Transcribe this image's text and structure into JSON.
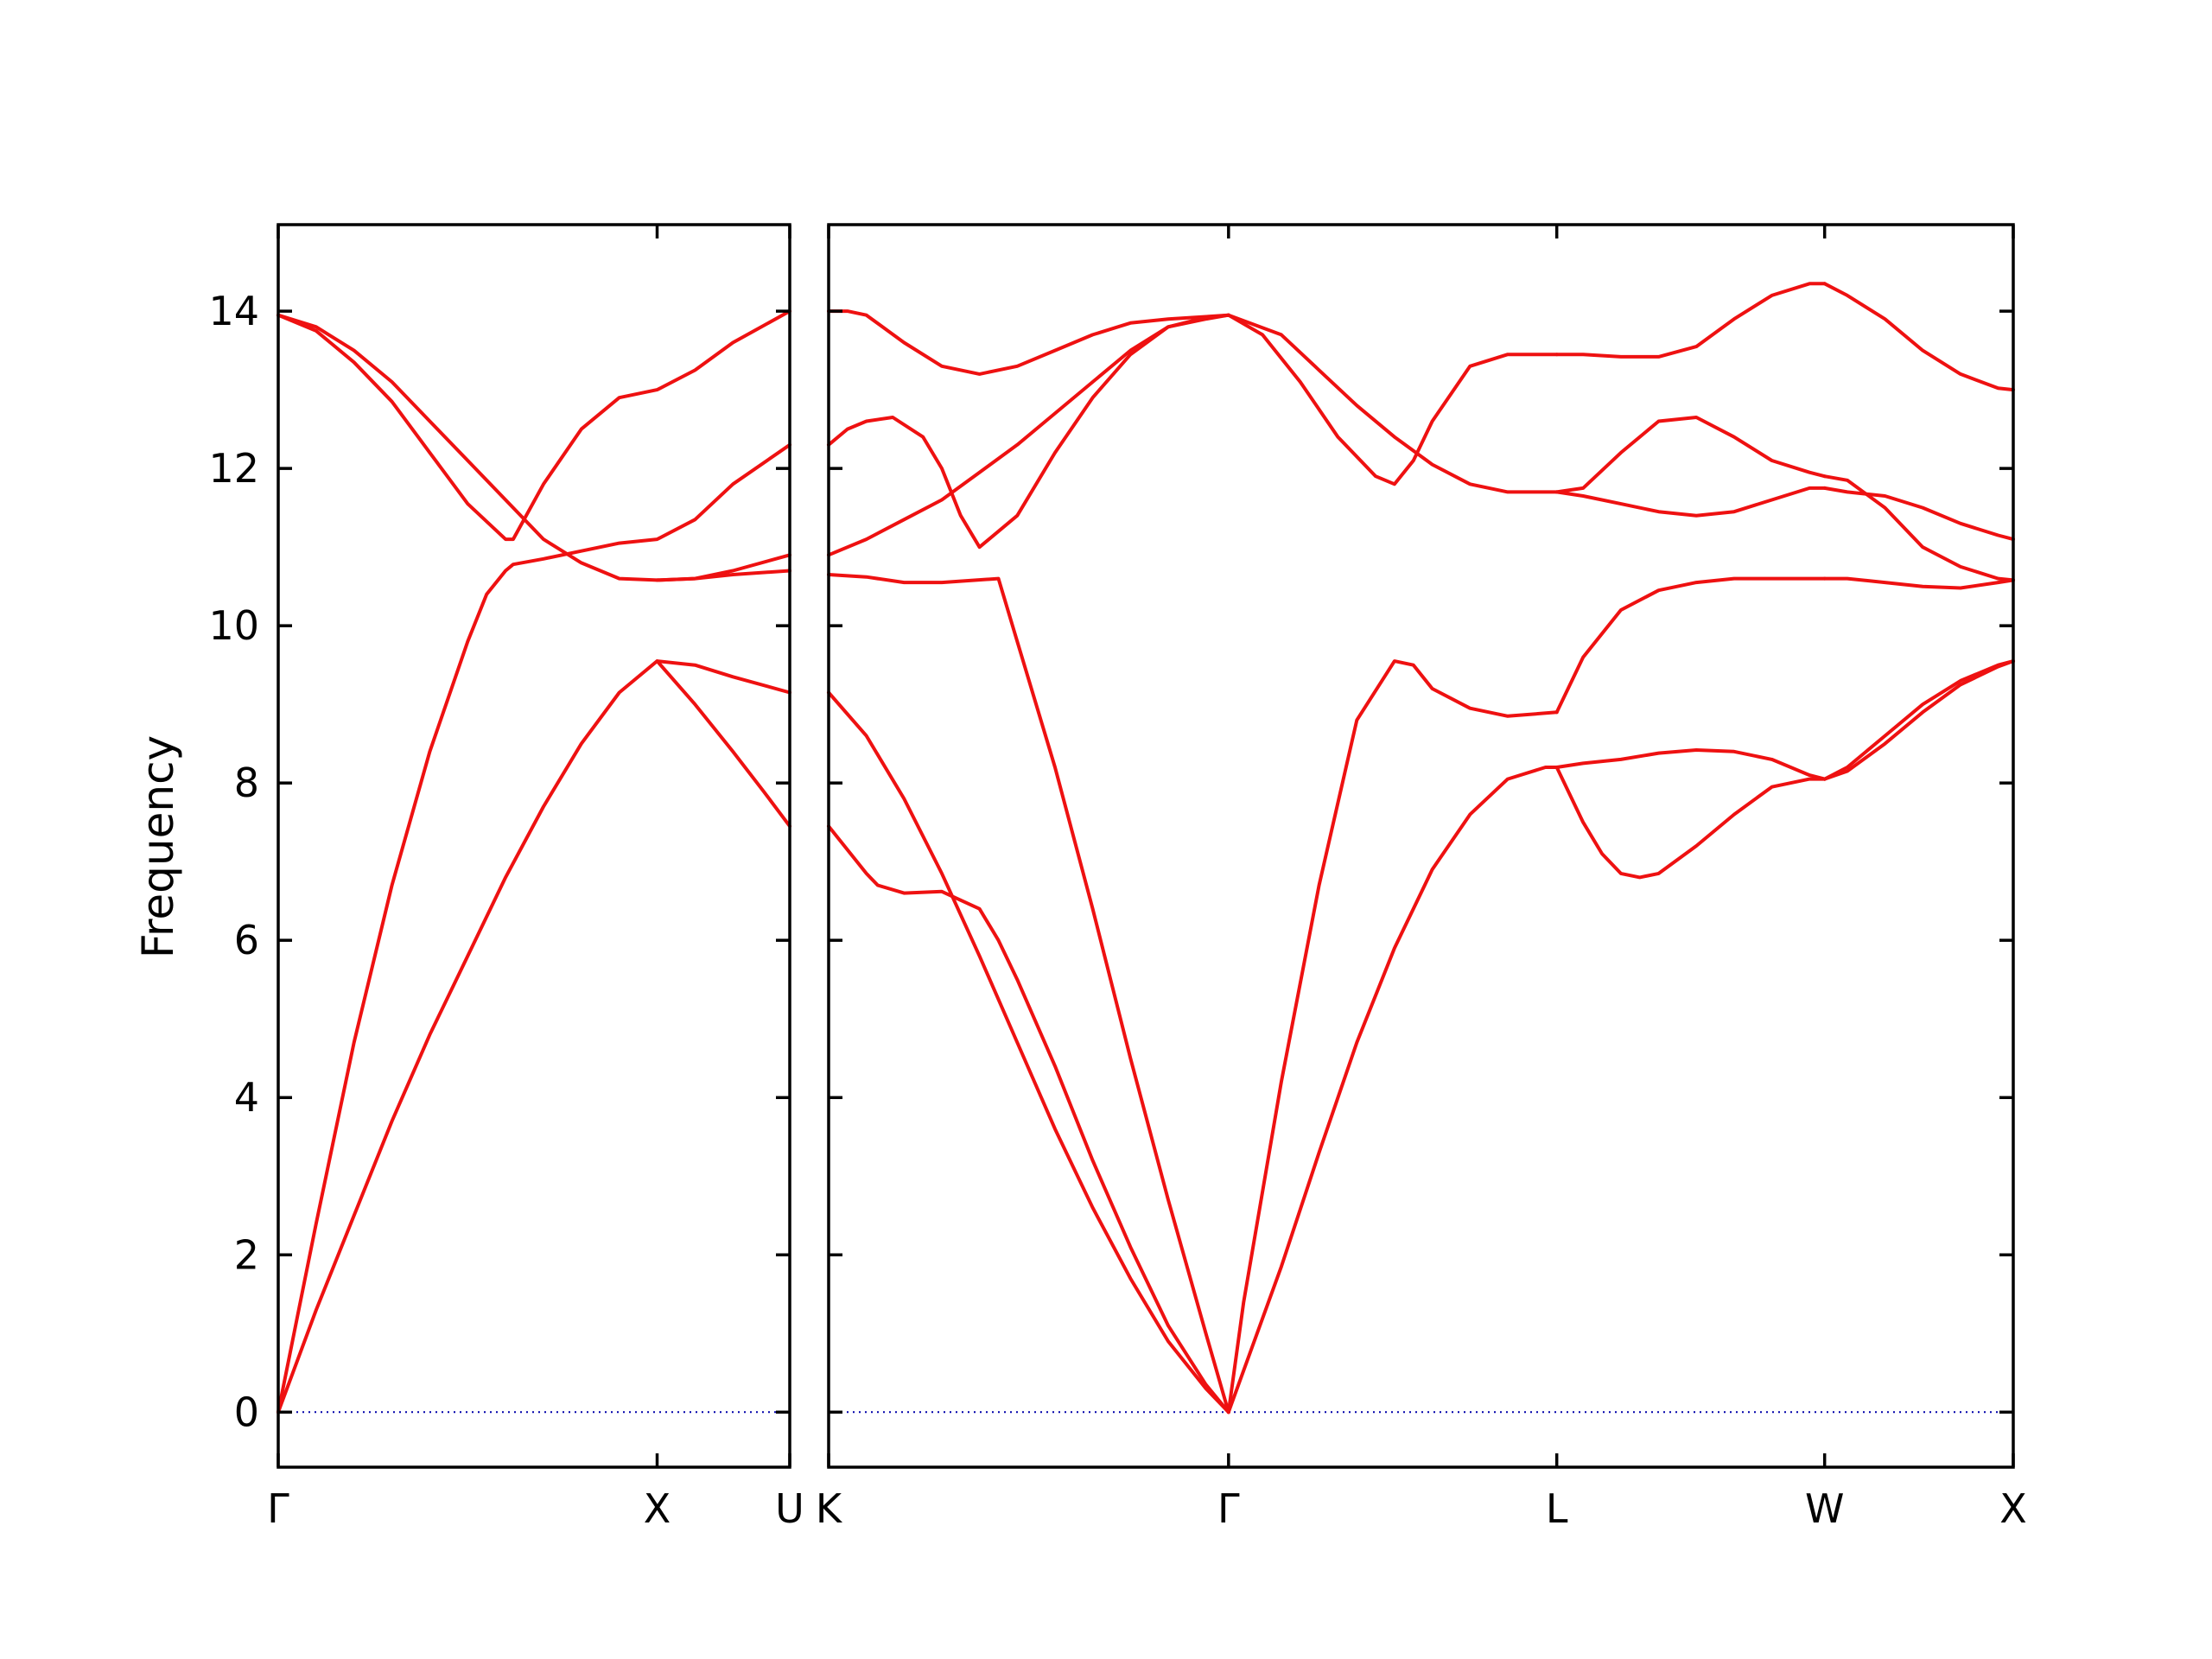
{
  "chart_data": {
    "type": "line",
    "title": "",
    "ylabel": "Frequency",
    "ylim": [
      -0.7,
      15.1
    ],
    "yticks": [
      0,
      2,
      4,
      6,
      8,
      10,
      12,
      14
    ],
    "line_color": "#ee1111",
    "zero_line_color": "#0000aa",
    "grid": false,
    "panels": [
      {
        "id": "left",
        "xlim": [
          0,
          1.35
        ],
        "xticks": [
          {
            "label": "Γ",
            "x": 0
          },
          {
            "label": "X",
            "x": 1.0
          },
          {
            "label": "U",
            "x": 1.35
          }
        ],
        "branches": [
          {
            "x": [
              0,
              0.05,
              0.1,
              0.2,
              0.3,
              0.4,
              0.5,
              0.55,
              0.6,
              0.62,
              0.7,
              0.8,
              0.9,
              1.0,
              1.1,
              1.2,
              1.35
            ],
            "y": [
              0,
              1.2,
              2.4,
              4.7,
              6.7,
              8.4,
              9.8,
              10.4,
              10.7,
              10.78,
              10.85,
              10.95,
              11.05,
              11.1,
              11.35,
              11.8,
              12.3
            ]
          },
          {
            "x": [
              0,
              0.1,
              0.2,
              0.3,
              0.4,
              0.5,
              0.6,
              0.7,
              0.8,
              0.9,
              1.0,
              1.1,
              1.2,
              1.35
            ],
            "y": [
              0,
              1.3,
              2.5,
              3.7,
              4.8,
              5.8,
              6.8,
              7.7,
              8.5,
              9.15,
              9.55,
              9.5,
              9.35,
              9.15
            ]
          },
          {
            "x": [
              0,
              0.1,
              0.2,
              0.3,
              0.4,
              0.5,
              0.6,
              0.62,
              0.7,
              0.8,
              0.9,
              1.0,
              1.1,
              1.2,
              1.35
            ],
            "y": [
              13.95,
              13.75,
              13.35,
              12.85,
              12.2,
              11.55,
              11.1,
              11.1,
              11.8,
              12.5,
              12.9,
              13.0,
              13.25,
              13.6,
              14.0
            ]
          },
          {
            "x": [
              0,
              0.1,
              0.2,
              0.3,
              0.4,
              0.5,
              0.6,
              0.7,
              0.8,
              0.9,
              1.0,
              1.1,
              1.2,
              1.35
            ],
            "y": [
              13.95,
              13.8,
              13.5,
              13.1,
              12.6,
              12.1,
              11.6,
              11.1,
              10.8,
              10.6,
              10.58,
              10.6,
              10.65,
              10.7
            ]
          },
          {
            "x": [
              1.0,
              1.1,
              1.2,
              1.35
            ],
            "y": [
              10.58,
              10.6,
              10.7,
              10.9
            ]
          },
          {
            "x": [
              1.0,
              1.1,
              1.2,
              1.28,
              1.35
            ],
            "y": [
              9.55,
              9.0,
              8.4,
              7.9,
              7.45
            ]
          }
        ]
      },
      {
        "id": "right",
        "xlim": [
          0,
          3.14
        ],
        "xticks": [
          {
            "label": "K",
            "x": 0
          },
          {
            "label": "Γ",
            "x": 1.06
          },
          {
            "label": "L",
            "x": 1.93
          },
          {
            "label": "W",
            "x": 2.64
          },
          {
            "label": "X",
            "x": 3.14
          }
        ],
        "branches": [
          {
            "x": [
              0,
              0.1,
              0.2,
              0.3,
              0.4,
              0.5,
              0.6,
              0.7,
              0.8,
              0.9,
              1.0,
              1.06
            ],
            "y": [
              9.15,
              8.6,
              7.8,
              6.85,
              5.8,
              4.7,
              3.6,
              2.6,
              1.7,
              0.9,
              0.3,
              0
            ]
          },
          {
            "x": [
              0,
              0.1,
              0.13,
              0.2,
              0.3,
              0.4,
              0.45,
              0.5,
              0.6,
              0.7,
              0.8,
              0.9,
              1.0,
              1.06
            ],
            "y": [
              7.45,
              6.85,
              6.7,
              6.6,
              6.62,
              6.4,
              6.0,
              5.5,
              4.4,
              3.2,
              2.1,
              1.1,
              0.35,
              0
            ]
          },
          {
            "x": [
              0,
              0.1,
              0.2,
              0.3,
              0.45,
              0.5,
              0.6,
              0.7,
              0.8,
              0.9,
              1.0,
              1.06
            ],
            "y": [
              10.65,
              10.62,
              10.55,
              10.55,
              10.6,
              9.8,
              8.2,
              6.4,
              4.5,
              2.7,
              1.0,
              0
            ]
          },
          {
            "x": [
              0,
              0.05,
              0.1,
              0.17,
              0.25,
              0.3,
              0.35,
              0.4,
              0.5,
              0.6,
              0.7,
              0.8,
              0.9,
              1.0,
              1.06
            ],
            "y": [
              12.3,
              12.5,
              12.6,
              12.65,
              12.4,
              12.0,
              11.4,
              11.0,
              11.4,
              12.2,
              12.9,
              13.45,
              13.8,
              13.9,
              13.95
            ]
          },
          {
            "x": [
              0,
              0.1,
              0.2,
              0.3,
              0.4,
              0.5,
              0.6,
              0.7,
              0.8,
              0.9,
              1.0,
              1.06
            ],
            "y": [
              10.9,
              11.1,
              11.35,
              11.6,
              11.95,
              12.3,
              12.7,
              13.1,
              13.5,
              13.8,
              13.92,
              13.95
            ]
          },
          {
            "x": [
              0,
              0.05,
              0.1,
              0.2,
              0.3,
              0.4,
              0.5,
              0.6,
              0.7,
              0.8,
              0.9,
              1.0,
              1.06
            ],
            "y": [
              14.0,
              14.0,
              13.95,
              13.6,
              13.3,
              13.2,
              13.3,
              13.5,
              13.7,
              13.85,
              13.9,
              13.93,
              13.95
            ]
          },
          {
            "x": [
              1.06,
              1.1,
              1.2,
              1.3,
              1.4,
              1.5,
              1.55,
              1.6,
              1.7,
              1.8,
              1.93
            ],
            "y": [
              0,
              1.4,
              4.2,
              6.7,
              8.8,
              9.55,
              9.5,
              9.2,
              8.95,
              8.85,
              8.9
            ]
          },
          {
            "x": [
              1.06,
              1.2,
              1.3,
              1.4,
              1.5,
              1.6,
              1.7,
              1.8,
              1.9,
              1.93
            ],
            "y": [
              0,
              1.85,
              3.3,
              4.7,
              5.9,
              6.9,
              7.6,
              8.05,
              8.2,
              8.2
            ]
          },
          {
            "x": [
              1.06,
              1.15,
              1.25,
              1.35,
              1.45,
              1.5,
              1.55,
              1.6,
              1.7,
              1.8,
              1.93
            ],
            "y": [
              13.95,
              13.7,
              13.1,
              12.4,
              11.9,
              11.8,
              12.1,
              12.6,
              13.3,
              13.45,
              13.45
            ]
          },
          {
            "x": [
              1.06,
              1.2,
              1.3,
              1.4,
              1.5,
              1.6,
              1.7,
              1.8,
              1.93
            ],
            "y": [
              13.95,
              13.7,
              13.25,
              12.8,
              12.4,
              12.05,
              11.8,
              11.7,
              11.7
            ]
          },
          {
            "x": [
              1.93,
              2.0,
              2.1,
              2.2,
              2.3,
              2.4,
              2.5,
              2.6,
              2.64
            ],
            "y": [
              8.9,
              9.6,
              10.2,
              10.45,
              10.55,
              10.6,
              10.6,
              10.6,
              10.6
            ]
          },
          {
            "x": [
              1.93,
              2.0,
              2.1,
              2.2,
              2.3,
              2.4,
              2.5,
              2.6,
              2.64
            ],
            "y": [
              8.2,
              8.25,
              8.3,
              8.38,
              8.42,
              8.4,
              8.3,
              8.1,
              8.05
            ]
          },
          {
            "x": [
              1.93,
              2.0,
              2.05,
              2.1,
              2.15,
              2.2,
              2.3,
              2.4,
              2.5,
              2.6,
              2.64
            ],
            "y": [
              8.2,
              7.5,
              7.1,
              6.85,
              6.8,
              6.85,
              7.2,
              7.6,
              7.95,
              8.05,
              8.05
            ]
          },
          {
            "x": [
              1.93,
              2.0,
              2.1,
              2.2,
              2.3,
              2.4,
              2.5,
              2.6,
              2.64
            ],
            "y": [
              13.45,
              13.45,
              13.42,
              13.42,
              13.55,
              13.9,
              14.2,
              14.35,
              14.35
            ]
          },
          {
            "x": [
              1.93,
              2.0,
              2.1,
              2.2,
              2.3,
              2.4,
              2.5,
              2.6,
              2.64
            ],
            "y": [
              11.7,
              11.75,
              12.2,
              12.6,
              12.65,
              12.4,
              12.1,
              11.95,
              11.9
            ]
          },
          {
            "x": [
              1.93,
              2.0,
              2.1,
              2.2,
              2.3,
              2.4,
              2.5,
              2.6,
              2.64
            ],
            "y": [
              11.7,
              11.65,
              11.55,
              11.45,
              11.4,
              11.45,
              11.6,
              11.75,
              11.75
            ]
          },
          {
            "x": [
              2.64,
              2.7,
              2.8,
              2.9,
              3.0,
              3.1,
              3.14
            ],
            "y": [
              14.35,
              14.2,
              13.9,
              13.5,
              13.2,
              13.02,
              13.0
            ]
          },
          {
            "x": [
              2.64,
              2.7,
              2.8,
              2.9,
              3.0,
              3.1,
              3.14
            ],
            "y": [
              11.9,
              11.85,
              11.5,
              11.0,
              10.75,
              10.6,
              10.58
            ]
          },
          {
            "x": [
              2.64,
              2.7,
              2.8,
              2.9,
              3.0,
              3.1,
              3.14
            ],
            "y": [
              11.75,
              11.7,
              11.65,
              11.5,
              11.3,
              11.15,
              11.1
            ]
          },
          {
            "x": [
              2.64,
              2.7,
              2.8,
              2.9,
              3.0,
              3.1,
              3.14
            ],
            "y": [
              10.6,
              10.6,
              10.55,
              10.5,
              10.48,
              10.55,
              10.58
            ]
          },
          {
            "x": [
              2.64,
              2.7,
              2.8,
              2.9,
              3.0,
              3.1,
              3.14
            ],
            "y": [
              8.05,
              8.2,
              8.6,
              9.0,
              9.3,
              9.5,
              9.55
            ]
          },
          {
            "x": [
              2.64,
              2.7,
              2.8,
              2.9,
              3.0,
              3.1,
              3.14
            ],
            "y": [
              8.05,
              8.15,
              8.5,
              8.9,
              9.25,
              9.48,
              9.55
            ]
          }
        ]
      }
    ]
  }
}
